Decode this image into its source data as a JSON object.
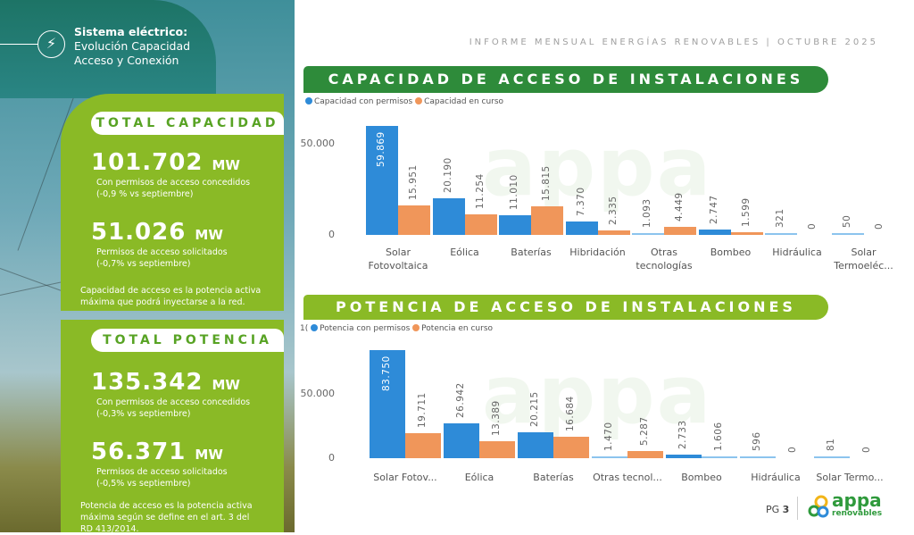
{
  "header": {
    "title_bold": "Sistema eléctrico:",
    "title_line2": "Evolución Capacidad",
    "title_line3": "Acceso y Conexión",
    "icon": "power-tower-icon",
    "report": "INFORME MENSUAL ENERGÍAS RENOVABLES | OCTUBRE 2025"
  },
  "capacidad": {
    "title": "TOTAL CAPACIDAD",
    "v1": "101.702",
    "unit": "MW",
    "d1a": "Con permisos de acceso concedidos",
    "d1b": "(-0,9 % vs septiembre)",
    "v2": "51.026",
    "d2a": "Permisos de acceso solicitados",
    "d2b": "(-0,7% vs septiembre)",
    "note1": "Capacidad de acceso es la potencia activa",
    "note2": "máxima que podrá inyectarse a la red."
  },
  "potencia": {
    "title": "TOTAL POTENCIA",
    "v1": "135.342",
    "unit": "MW",
    "d1a": "Con permisos de acceso concedidos",
    "d1b": "(-0,3% vs septiembre)",
    "v2": "56.371",
    "d2a": "Permisos de acceso solicitados",
    "d2b": "(-0,5% vs septiembre)",
    "note1": "Potencia de acceso es la potencia activa",
    "note2": "máxima según se define en el art. 3 del",
    "note3": "RD 413/2014."
  },
  "footer": {
    "page_label": "PG",
    "page_num": "3",
    "logo_text": "appa",
    "logo_sub": "renovables"
  },
  "colors": {
    "blue": "#2e8bd8",
    "orange": "#f0965a",
    "dark_green": "#2e8b3a",
    "light_green": "#8aba26"
  },
  "chart_data": [
    {
      "type": "bar",
      "title": "CAPACIDAD DE ACCESO DE INSTALACIONES (MW)",
      "legend_prefix": "",
      "categories": [
        "Solar Fotovoltaica",
        "Eólica",
        "Baterías",
        "Hibridación",
        "Otras tecnologías",
        "Bombeo",
        "Hidráulica",
        "Solar Termoeléc..."
      ],
      "series": [
        {
          "name": "Capacidad con permisos",
          "values": [
            59869,
            20190,
            11010,
            7370,
            1093,
            2747,
            321,
            50
          ],
          "labels": [
            "59.869",
            "20.190",
            "11.010",
            "7.370",
            "1.093",
            "2.747",
            "321",
            "50"
          ]
        },
        {
          "name": "Capacidad en curso",
          "values": [
            15951,
            11254,
            15815,
            2335,
            4449,
            1599,
            0,
            0
          ],
          "labels": [
            "15.951",
            "11.254",
            "15.815",
            "2.335",
            "4.449",
            "1.599",
            "0",
            "0"
          ]
        }
      ],
      "yticks": [
        "0",
        "50.000"
      ],
      "ytick_values": [
        0,
        50000
      ],
      "legend": "top-left"
    },
    {
      "type": "bar",
      "title": "POTENCIA DE ACCESO DE INSTALACIONES (MW)",
      "legend_prefix": "1(",
      "categories": [
        "Solar Fotov...",
        "Eólica",
        "Baterías",
        "Otras tecnol...",
        "Bombeo",
        "Hidráulica",
        "Solar Termo..."
      ],
      "series": [
        {
          "name": "Potencia con permisos",
          "values": [
            83750,
            26942,
            20215,
            1470,
            2733,
            596,
            81
          ],
          "labels": [
            "83.750",
            "26.942",
            "20.215",
            "1.470",
            "2.733",
            "596",
            "81"
          ]
        },
        {
          "name": "Potencia en curso",
          "values": [
            19711,
            13389,
            16684,
            5287,
            1606,
            0,
            0
          ],
          "labels": [
            "19.711",
            "13.389",
            "16.684",
            "5.287",
            "1.606",
            "0",
            "0"
          ]
        }
      ],
      "yticks": [
        "0",
        "50.000"
      ],
      "ytick_values": [
        0,
        50000
      ],
      "legend": "top-left"
    }
  ]
}
